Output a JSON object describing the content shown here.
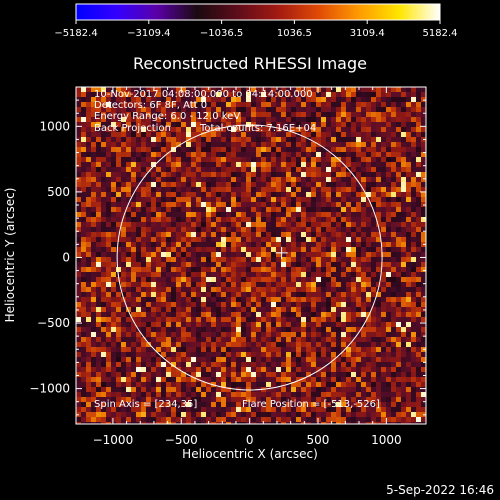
{
  "chart_data": {
    "type": "heatmap",
    "title": "Reconstructed RHESSI Image",
    "xlabel": "Heliocentric X (arcsec)",
    "ylabel": "Heliocentric Y (arcsec)",
    "xlim": [
      -1270,
      1290
    ],
    "ylim": [
      -1270,
      1300
    ],
    "x_ticks": [
      -1000,
      -500,
      0,
      500,
      1000
    ],
    "y_ticks": [
      -1000,
      -500,
      0,
      500,
      1000
    ],
    "x_tick_labels": [
      "−1000",
      "−500",
      "0",
      "500",
      "1000"
    ],
    "y_tick_labels": [
      "−1000",
      "−500",
      "0",
      "500",
      "1000"
    ],
    "colorbar": {
      "min": -5182.4,
      "max": 5182.4,
      "tick_labels": [
        "−5182.4",
        "−3109.4",
        "−1036.5",
        "1036.5",
        "3109.4",
        "5182.4"
      ],
      "colors": [
        "#0000ff",
        "#3300ff",
        "#5a00a8",
        "#1a0a10",
        "#5e0c1a",
        "#a31a12",
        "#e04a05",
        "#ff9b00",
        "#ffe600",
        "#ffffff"
      ]
    },
    "annotations": [
      "10-Nov-2017 04:08:00.000 to 04:14:00.000",
      "Detectors: 6F 8F, Att 0",
      "Energy Range: 6.0 - 12.0 keV",
      "Back Projection",
      "Total counts: 7.16E+04"
    ],
    "footer_annotations": {
      "spin_axis": "Spin Axis = [234,35]",
      "flare_position": "Flare Position = [-513,-526]"
    },
    "solar_disk": {
      "center": [
        0,
        0
      ],
      "radius_arcsec": 969
    },
    "center_marker": [
      234,
      35
    ],
    "timestamp": "5-Sep-2022 16:46"
  }
}
